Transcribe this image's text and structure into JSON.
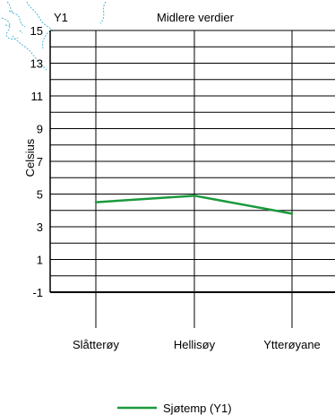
{
  "chart_data": {
    "type": "line",
    "title": "Midlere verdier",
    "axis_tag": "Y1",
    "ylabel": "Celsius",
    "xlabel": "",
    "categories": [
      "Slåtterøy",
      "Hellisøy",
      "Ytterøyane"
    ],
    "yticks": [
      "15",
      "13",
      "11",
      "9",
      "7",
      "5",
      "3",
      "1",
      "-1"
    ],
    "ylim": [
      -1,
      15
    ],
    "grid": true,
    "legend_position": "bottom",
    "series": [
      {
        "name": "Sjøtemp (Y1)",
        "color": "#1a9a3c",
        "values": [
          4.5,
          4.9,
          3.8
        ]
      }
    ]
  }
}
